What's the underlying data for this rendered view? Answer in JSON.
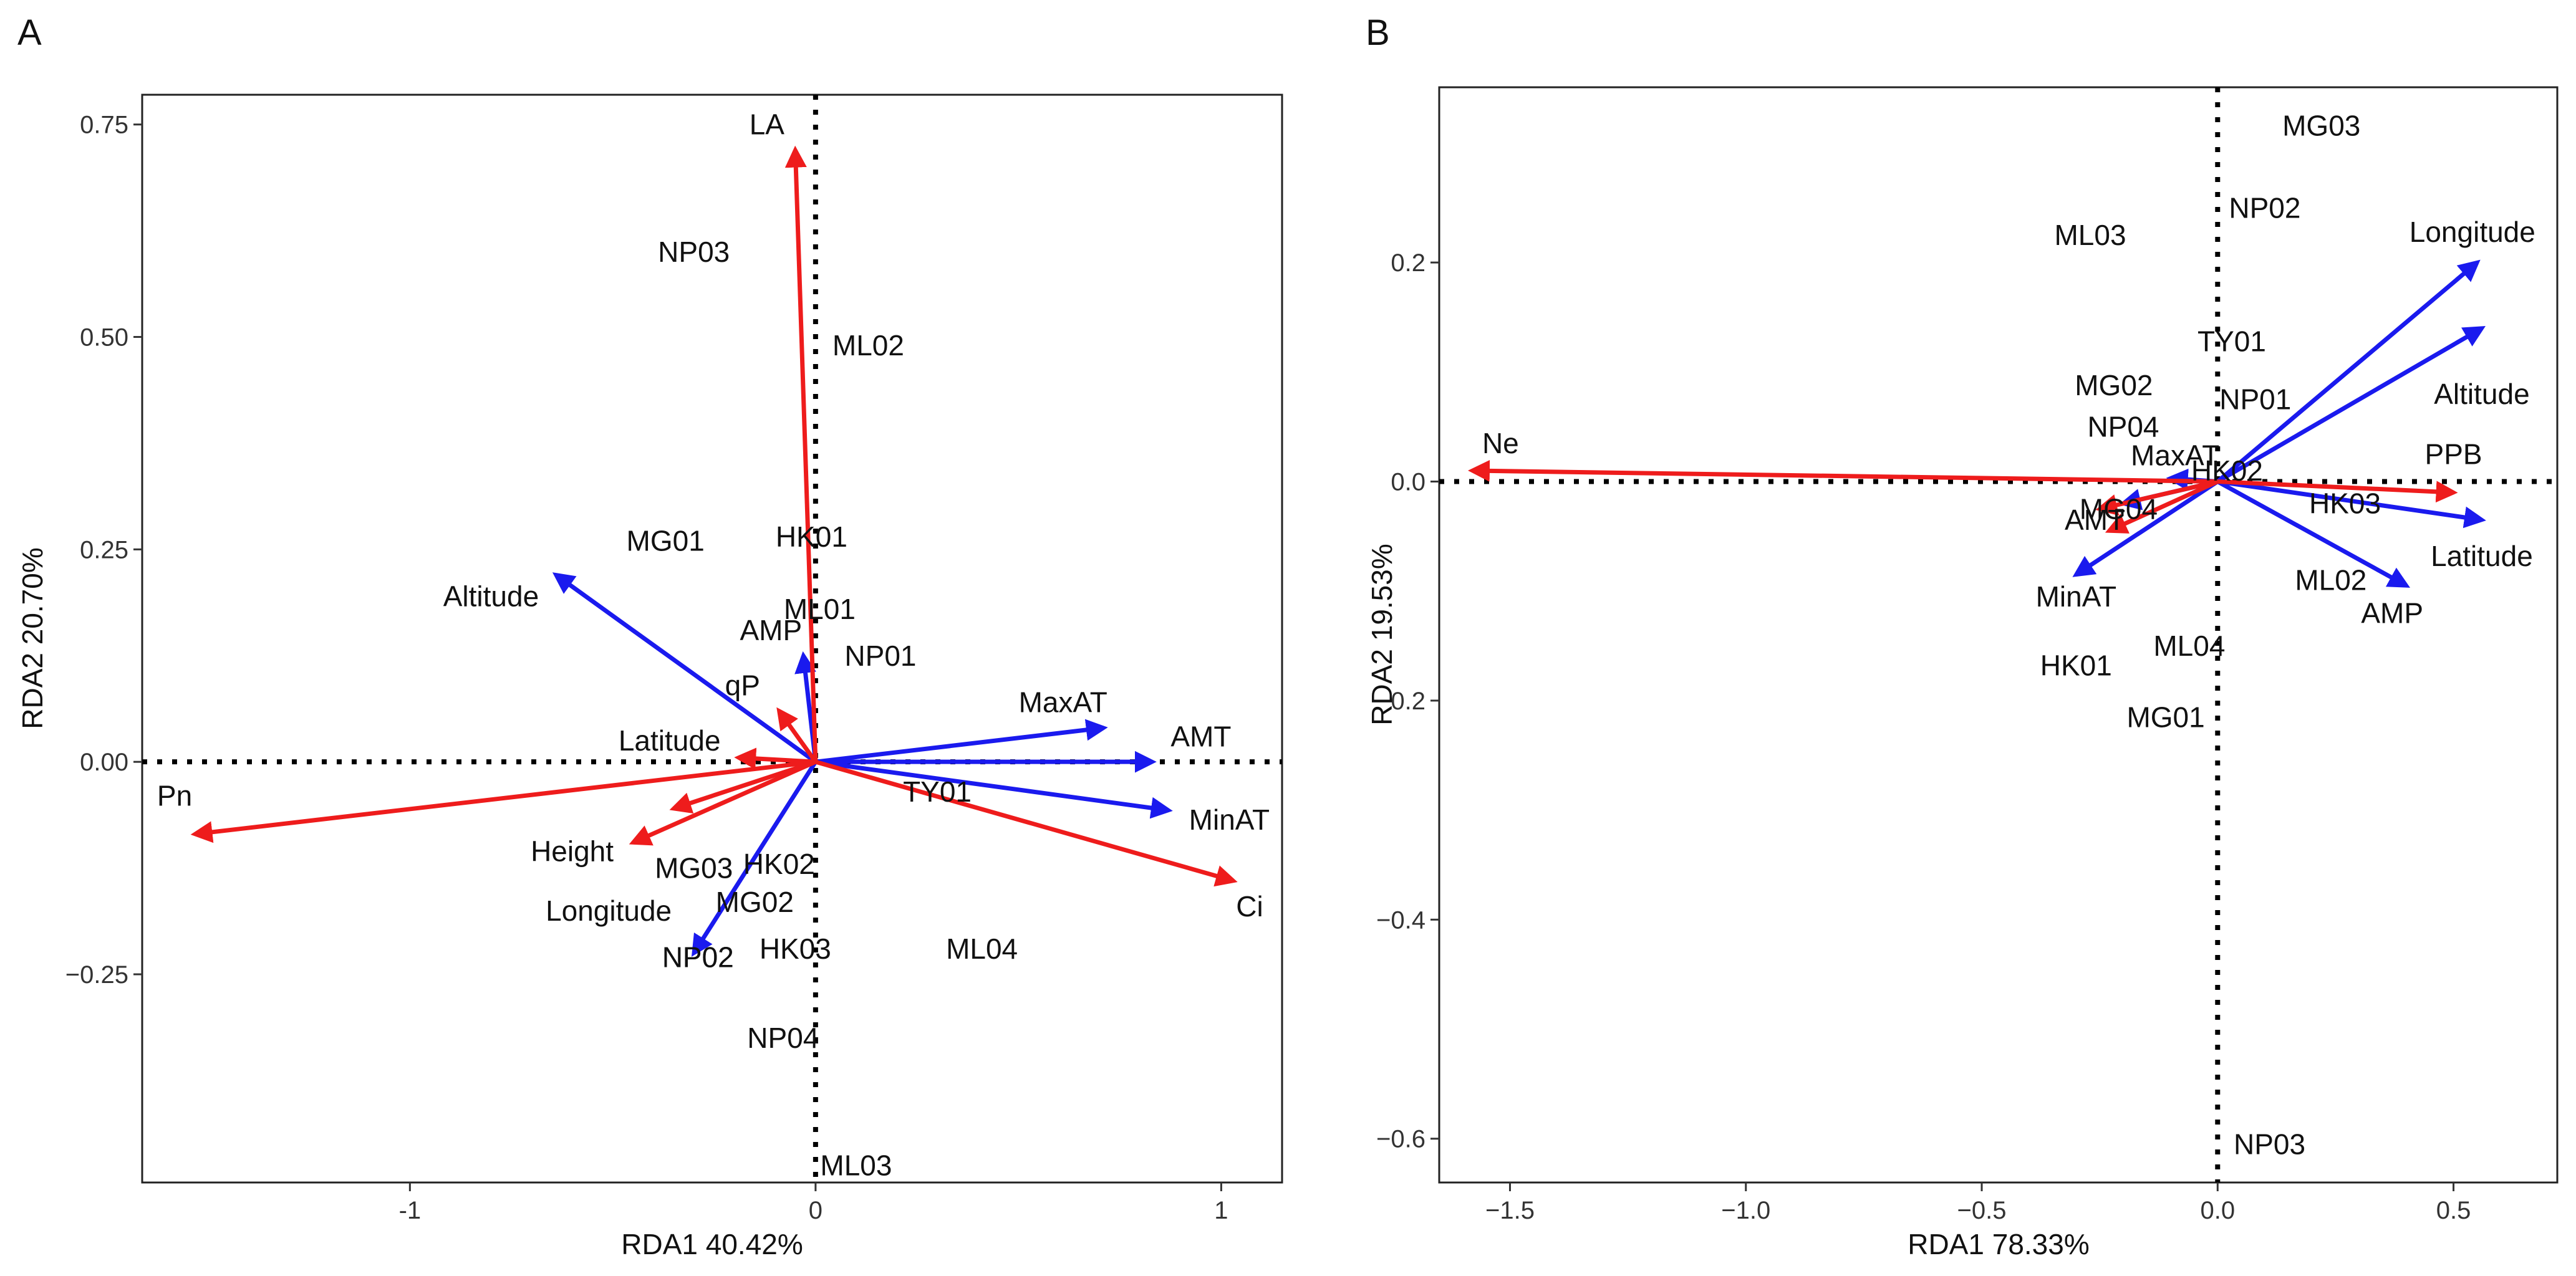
{
  "figure": {
    "panel_letters": [
      "A",
      "B"
    ]
  },
  "colors": {
    "response": "#ee1c1c",
    "environment": "#1a1aee",
    "text": "#111111",
    "frame": "#222222"
  },
  "chart_data": [
    {
      "panel": "A",
      "type": "scatter",
      "xlabel": "RDA1  40.42%",
      "ylabel": "RDA2  20.70%",
      "xlim": [
        -1.66,
        1.15
      ],
      "ylim": [
        -0.495,
        0.785
      ],
      "xticks": [
        -1,
        0,
        1
      ],
      "xtick_labels": [
        "-1",
        "0",
        "1"
      ],
      "yticks": [
        -0.25,
        0.0,
        0.25,
        0.5,
        0.75
      ],
      "ytick_labels": [
        "−0.25",
        "0.00",
        "0.25",
        "0.50",
        "0.75"
      ],
      "reference_lines": {
        "x": 0,
        "y": 0
      },
      "sites": [
        {
          "label": "NP03",
          "x": -0.3,
          "y": 0.6
        },
        {
          "label": "ML02",
          "x": 0.13,
          "y": 0.49
        },
        {
          "label": "MG01",
          "x": -0.37,
          "y": 0.26
        },
        {
          "label": "HK01",
          "x": -0.01,
          "y": 0.265
        },
        {
          "label": "ML01",
          "x": 0.01,
          "y": 0.18
        },
        {
          "label": "NP01",
          "x": 0.16,
          "y": 0.125
        },
        {
          "label": "TY01",
          "x": 0.3,
          "y": -0.035
        },
        {
          "label": "MG03",
          "x": -0.3,
          "y": -0.125
        },
        {
          "label": "HK02",
          "x": -0.09,
          "y": -0.12
        },
        {
          "label": "MG02",
          "x": -0.15,
          "y": -0.165
        },
        {
          "label": "HK03",
          "x": -0.05,
          "y": -0.22
        },
        {
          "label": "NP02",
          "x": -0.29,
          "y": -0.23
        },
        {
          "label": "ML04",
          "x": 0.41,
          "y": -0.22
        },
        {
          "label": "NP04",
          "x": -0.08,
          "y": -0.325
        },
        {
          "label": "ML03",
          "x": 0.1,
          "y": -0.475
        }
      ],
      "response_vectors": [
        {
          "label": "LA",
          "x": -0.05,
          "y": 0.72,
          "label_x": -0.12,
          "label_y": 0.75
        },
        {
          "label": "Pn",
          "x": -1.53,
          "y": -0.085,
          "label_x": -1.58,
          "label_y": -0.04
        },
        {
          "label": "Ci",
          "x": 1.03,
          "y": -0.14,
          "label_x": 1.07,
          "label_y": -0.17
        },
        {
          "label": "Height",
          "x": -0.45,
          "y": -0.095,
          "label_x": -0.6,
          "label_y": -0.105
        },
        {
          "label": "qP",
          "x": -0.09,
          "y": 0.06,
          "label_x": -0.18,
          "label_y": 0.09
        },
        {
          "label": "Latitude",
          "x": -0.19,
          "y": 0.005,
          "label_x": -0.36,
          "label_y": 0.025
        },
        {
          "label": "Longitude",
          "x": -0.35,
          "y": -0.055,
          "label_x": -0.51,
          "label_y": -0.175
        }
      ],
      "environment_vectors": [
        {
          "label": "Altitude",
          "x": -0.64,
          "y": 0.22,
          "label_x": -0.8,
          "label_y": 0.195
        },
        {
          "label": "AMP",
          "x": -0.03,
          "y": 0.125,
          "label_x": -0.11,
          "label_y": 0.155
        },
        {
          "label": "MaxAT",
          "x": 0.71,
          "y": 0.04,
          "label_x": 0.61,
          "label_y": 0.07
        },
        {
          "label": "AMT",
          "x": 0.83,
          "y": 0.0,
          "label_x": 0.95,
          "label_y": 0.03
        },
        {
          "label": "MinAT",
          "x": 0.87,
          "y": -0.057,
          "label_x": 1.02,
          "label_y": -0.068
        },
        {
          "label": "NP02",
          "x": -0.3,
          "y": -0.225,
          "label_x": -0.29,
          "label_y": -0.23
        }
      ]
    },
    {
      "panel": "B",
      "type": "scatter",
      "xlabel": "RDA1  78.33%",
      "ylabel": "RDA2  19.53%",
      "xlim": [
        -1.65,
        0.72
      ],
      "ylim": [
        -0.64,
        0.36
      ],
      "xticks": [
        -1.5,
        -1.0,
        -0.5,
        0.0,
        0.5
      ],
      "xtick_labels": [
        "−1.5",
        "−1.0",
        "−0.5",
        "0.0",
        "0.5"
      ],
      "yticks": [
        -0.6,
        -0.4,
        -0.2,
        0.0,
        0.2
      ],
      "ytick_labels": [
        "−0.6",
        "−0.4",
        "−0.2",
        "0.0",
        "0.2"
      ],
      "reference_lines": {
        "x": 0,
        "y": 0
      },
      "sites": [
        {
          "label": "MG03",
          "x": 0.22,
          "y": 0.325
        },
        {
          "label": "NP02",
          "x": 0.1,
          "y": 0.25
        },
        {
          "label": "ML03",
          "x": -0.27,
          "y": 0.225
        },
        {
          "label": "TY01",
          "x": 0.03,
          "y": 0.128
        },
        {
          "label": "MG02",
          "x": -0.22,
          "y": 0.088
        },
        {
          "label": "NP01",
          "x": 0.08,
          "y": 0.075
        },
        {
          "label": "NP04",
          "x": -0.2,
          "y": 0.05
        },
        {
          "label": "MaxAT",
          "x": -0.09,
          "y": 0.024
        },
        {
          "label": "HK02",
          "x": 0.02,
          "y": 0.01
        },
        {
          "label": "MG04",
          "x": -0.21,
          "y": -0.025
        },
        {
          "label": "AMT",
          "x": -0.26,
          "y": -0.035
        },
        {
          "label": "HK03",
          "x": 0.27,
          "y": -0.02
        },
        {
          "label": "MinAT",
          "x": -0.3,
          "y": -0.105
        },
        {
          "label": "ML02",
          "x": 0.24,
          "y": -0.09
        },
        {
          "label": "ML04",
          "x": -0.06,
          "y": -0.15
        },
        {
          "label": "HK01",
          "x": -0.3,
          "y": -0.168
        },
        {
          "label": "MG01",
          "x": -0.11,
          "y": -0.215
        },
        {
          "label": "NP03",
          "x": 0.11,
          "y": -0.605
        }
      ],
      "response_vectors": [
        {
          "label": "Ne",
          "x": -1.58,
          "y": 0.01,
          "label_x": -1.52,
          "label_y": 0.035
        },
        {
          "label": "PPB",
          "x": 0.5,
          "y": -0.01,
          "label_x": 0.5,
          "label_y": 0.025
        },
        {
          "label": "",
          "x": -0.23,
          "y": -0.045,
          "label_x": 0,
          "label_y": 0
        },
        {
          "label": "",
          "x": -0.25,
          "y": -0.025,
          "label_x": 0,
          "label_y": 0
        }
      ],
      "environment_vectors": [
        {
          "label": "Longitude",
          "x": 0.55,
          "y": 0.2,
          "label_x": 0.54,
          "label_y": 0.228
        },
        {
          "label": "Altitude",
          "x": 0.56,
          "y": 0.14,
          "label_x": 0.56,
          "label_y": 0.08
        },
        {
          "label": "Latitude",
          "x": 0.56,
          "y": -0.035,
          "label_x": 0.56,
          "label_y": -0.068
        },
        {
          "label": "AMP",
          "x": 0.4,
          "y": -0.095,
          "label_x": 0.37,
          "label_y": -0.12
        },
        {
          "label": "",
          "x": -0.3,
          "y": -0.085,
          "label_x": 0,
          "label_y": 0
        },
        {
          "label": "",
          "x": -0.2,
          "y": -0.02,
          "label_x": 0,
          "label_y": 0
        },
        {
          "label": "",
          "x": -0.1,
          "y": 0.003,
          "label_x": 0,
          "label_y": 0
        }
      ]
    }
  ]
}
